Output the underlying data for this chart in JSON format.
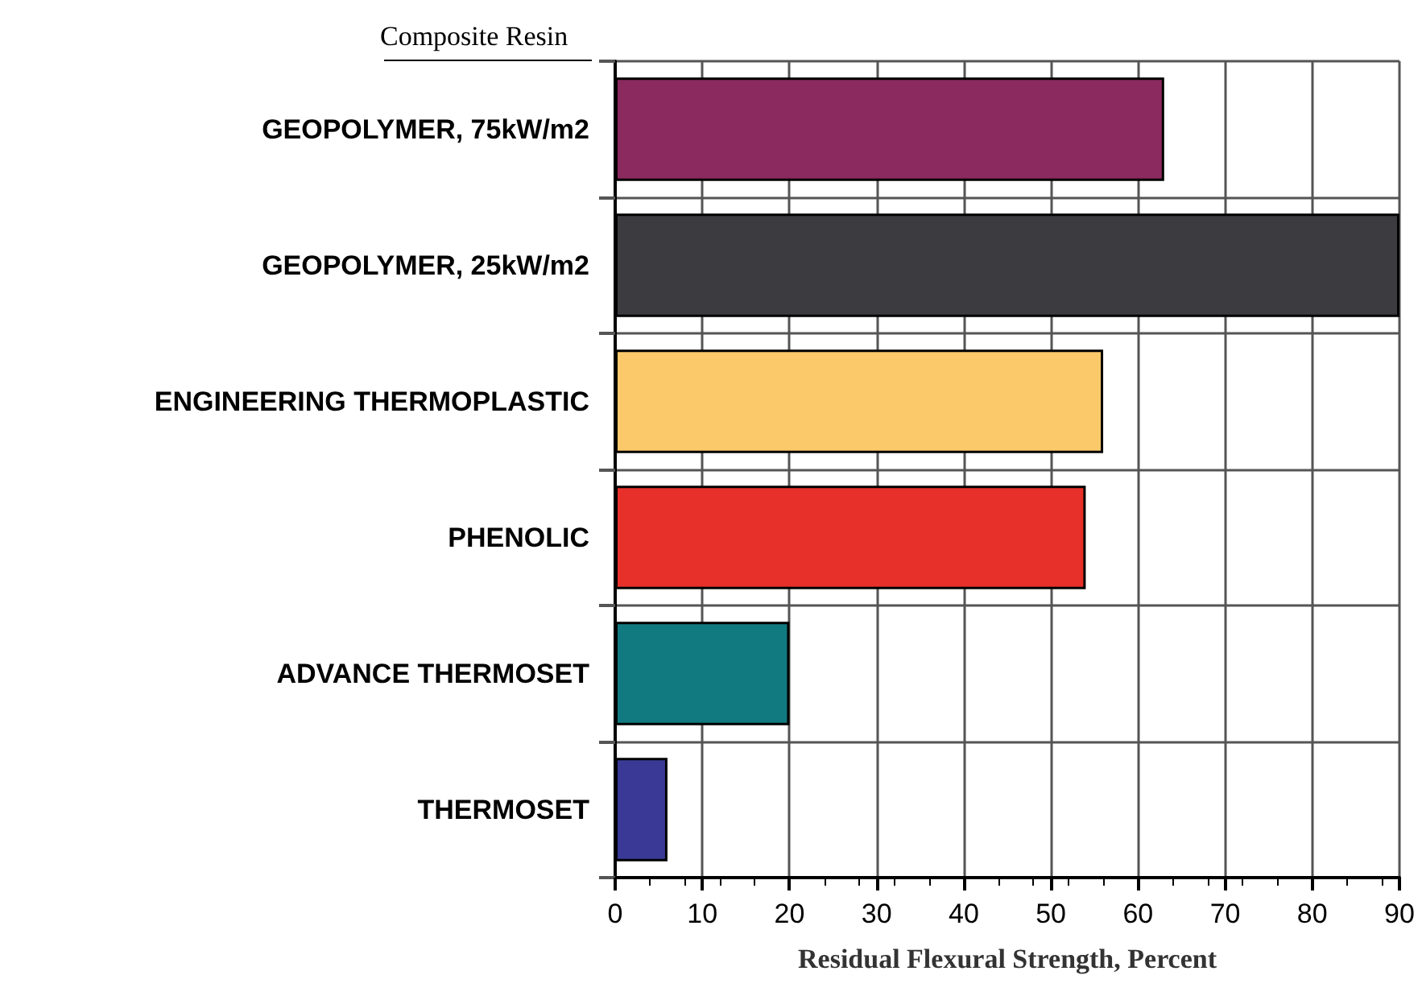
{
  "chart_data": {
    "type": "bar",
    "orientation": "horizontal",
    "ylabel": "Composite Resin",
    "xlabel": "Residual Flexural Strength, Percent",
    "categories": [
      "GEOPOLYMER, 75kW/m2",
      "GEOPOLYMER, 25kW/m2",
      "ENGINEERING THERMOPLASTIC",
      "PHENOLIC",
      "ADVANCE THERMOSET",
      "THERMOSET"
    ],
    "values": [
      63,
      90,
      56,
      54,
      20,
      6
    ],
    "colors": [
      "#8b2a5e",
      "#3c3c40",
      "#fcc96a",
      "#e8302a",
      "#117a80",
      "#3a3a96"
    ],
    "xlim": [
      0,
      90
    ],
    "xticks": [
      0,
      10,
      20,
      30,
      40,
      50,
      60,
      70,
      80,
      90
    ],
    "grid": true
  }
}
